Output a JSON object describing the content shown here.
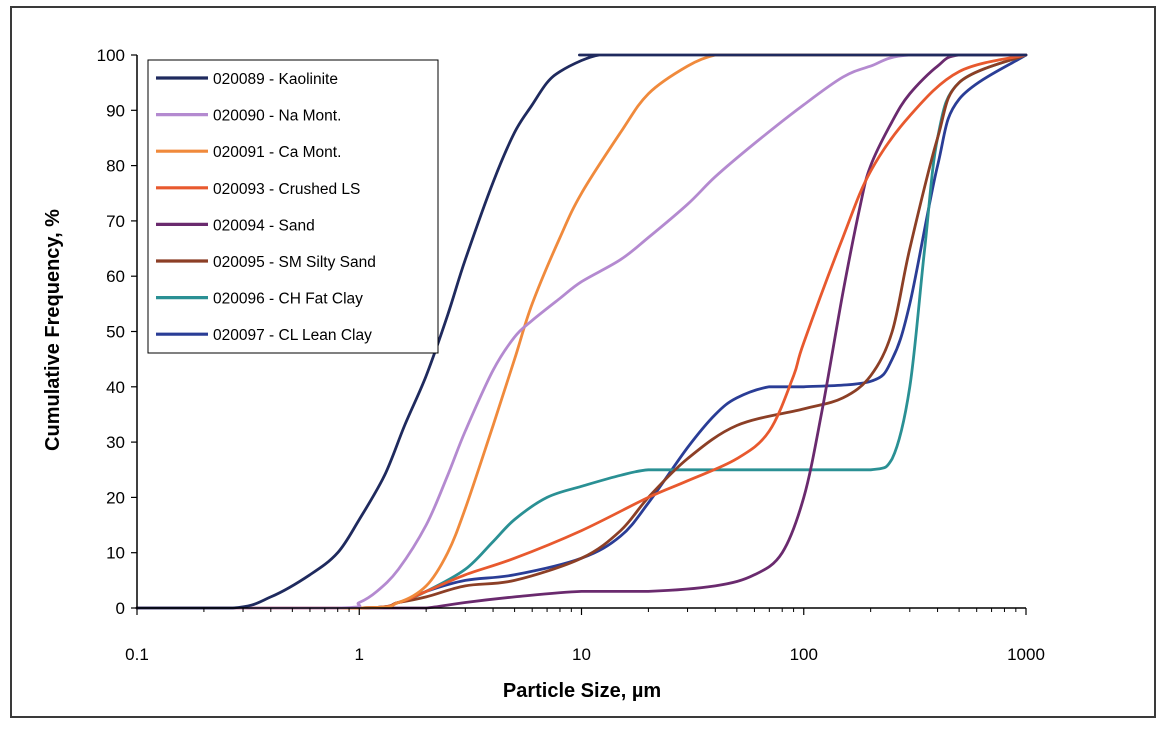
{
  "chart_data": {
    "type": "line",
    "xlabel": "Particle Size, µm",
    "ylabel": "Cumulative Frequency, %",
    "x_scale": "log",
    "xlim": [
      0.1,
      1000
    ],
    "ylim": [
      0,
      100
    ],
    "x_ticks": [
      0.1,
      1,
      10,
      100,
      1000
    ],
    "x_tick_labels": [
      "0.1",
      "1",
      "10",
      "100",
      "1000"
    ],
    "y_ticks": [
      0,
      10,
      20,
      30,
      40,
      50,
      60,
      70,
      80,
      90,
      100
    ],
    "y_tick_labels": [
      "0",
      "10",
      "20",
      "30",
      "40",
      "50",
      "60",
      "70",
      "80",
      "90",
      "100"
    ],
    "grid": false,
    "legend_position": "top-left",
    "series": [
      {
        "name": "020089 - Kaolinite",
        "color": "#1f2a5e",
        "x": [
          0.1,
          0.27,
          0.4,
          0.6,
          0.8,
          1.0,
          1.3,
          1.6,
          2.0,
          2.5,
          3.0,
          4.0,
          5.0,
          6.0,
          7.0,
          8.0,
          10.0,
          12.0,
          14.0,
          1000
        ],
        "y": [
          0,
          0,
          2,
          6,
          10,
          16,
          24,
          33,
          42,
          53,
          63,
          77,
          86,
          91,
          95,
          97,
          99,
          100,
          100,
          100
        ]
      },
      {
        "name": "020090 - Na Mont.",
        "color": "#b48ad0",
        "x": [
          0.1,
          0.8,
          1.0,
          1.2,
          1.5,
          2.0,
          2.5,
          3.0,
          4.0,
          5.0,
          6.0,
          8.0,
          10.0,
          15.0,
          20.0,
          30.0,
          40.0,
          60.0,
          100.0,
          150.0,
          200.0,
          300.0,
          1000
        ],
        "y": [
          0,
          0,
          1,
          3,
          7,
          15,
          24,
          32,
          43,
          49,
          52,
          56,
          59,
          63,
          67,
          73,
          78,
          84,
          91,
          96,
          98,
          100,
          100
        ]
      },
      {
        "name": "020091 - Ca Mont.",
        "color": "#f08a3c",
        "x": [
          0.1,
          1.0,
          1.5,
          2.0,
          2.5,
          3.0,
          4.0,
          5.0,
          6.0,
          8.0,
          10.0,
          15.0,
          20.0,
          30.0,
          40.0,
          50.0,
          1000
        ],
        "y": [
          0,
          0,
          1,
          4,
          10,
          18,
          33,
          45,
          55,
          67,
          75,
          86,
          93,
          98,
          100,
          100,
          100
        ]
      },
      {
        "name": "020093 - Crushed LS",
        "color": "#e8592e",
        "x": [
          0.1,
          1.0,
          1.5,
          2.0,
          3.0,
          5.0,
          10.0,
          20.0,
          30.0,
          50.0,
          70.0,
          90.0,
          100.0,
          150.0,
          200.0,
          300.0,
          500.0,
          1000
        ],
        "y": [
          0,
          0,
          1,
          3,
          6,
          9,
          14,
          20,
          23,
          27,
          32,
          42,
          48,
          67,
          79,
          89,
          97,
          100
        ]
      },
      {
        "name": "020094 - Sand",
        "color": "#6a2a6e",
        "x": [
          0.1,
          1.5,
          2.0,
          3.0,
          5.0,
          10.0,
          20.0,
          40.0,
          60.0,
          80.0,
          100.0,
          120.0,
          150.0,
          180.0,
          200.0,
          250.0,
          300.0,
          400.0,
          500.0,
          1000
        ],
        "y": [
          0,
          0,
          0,
          1,
          2,
          3,
          3,
          4,
          6,
          10,
          20,
          35,
          57,
          73,
          80,
          88,
          93,
          98,
          100,
          100
        ]
      },
      {
        "name": "020095 - SM Silty Sand",
        "color": "#8c3f26",
        "x": [
          0.1,
          1.0,
          1.5,
          2.0,
          3.0,
          5.0,
          10.0,
          15.0,
          20.0,
          30.0,
          50.0,
          100.0,
          150.0,
          200.0,
          250.0,
          300.0,
          400.0,
          500.0,
          1000
        ],
        "y": [
          0,
          0,
          1,
          2,
          4,
          5,
          9,
          14,
          20,
          27,
          33,
          36,
          38,
          42,
          50,
          65,
          85,
          95,
          100
        ]
      },
      {
        "name": "020096 - CH Fat Clay",
        "color": "#2a9094",
        "x": [
          0.1,
          1.0,
          1.5,
          2.0,
          3.0,
          4.0,
          5.0,
          7.0,
          10.0,
          15.0,
          20.0,
          30.0,
          50.0,
          100.0,
          200.0,
          250.0,
          300.0,
          350.0,
          400.0,
          500.0,
          1000
        ],
        "y": [
          0,
          0,
          1,
          3,
          7,
          12,
          16,
          20,
          22,
          24,
          25,
          25,
          25,
          25,
          25,
          27,
          40,
          65,
          85,
          95,
          100
        ]
      },
      {
        "name": "020097 - CL Lean Clay",
        "color": "#2a3d96",
        "x": [
          0.1,
          1.0,
          1.5,
          2.0,
          3.0,
          5.0,
          10.0,
          15.0,
          20.0,
          30.0,
          40.0,
          50.0,
          70.0,
          100.0,
          200.0,
          250.0,
          300.0,
          400.0,
          500.0,
          1000
        ],
        "y": [
          0,
          0,
          1,
          3,
          5,
          6,
          9,
          13,
          19,
          29,
          35,
          38,
          40,
          40,
          41,
          45,
          55,
          80,
          92,
          100
        ]
      }
    ]
  }
}
